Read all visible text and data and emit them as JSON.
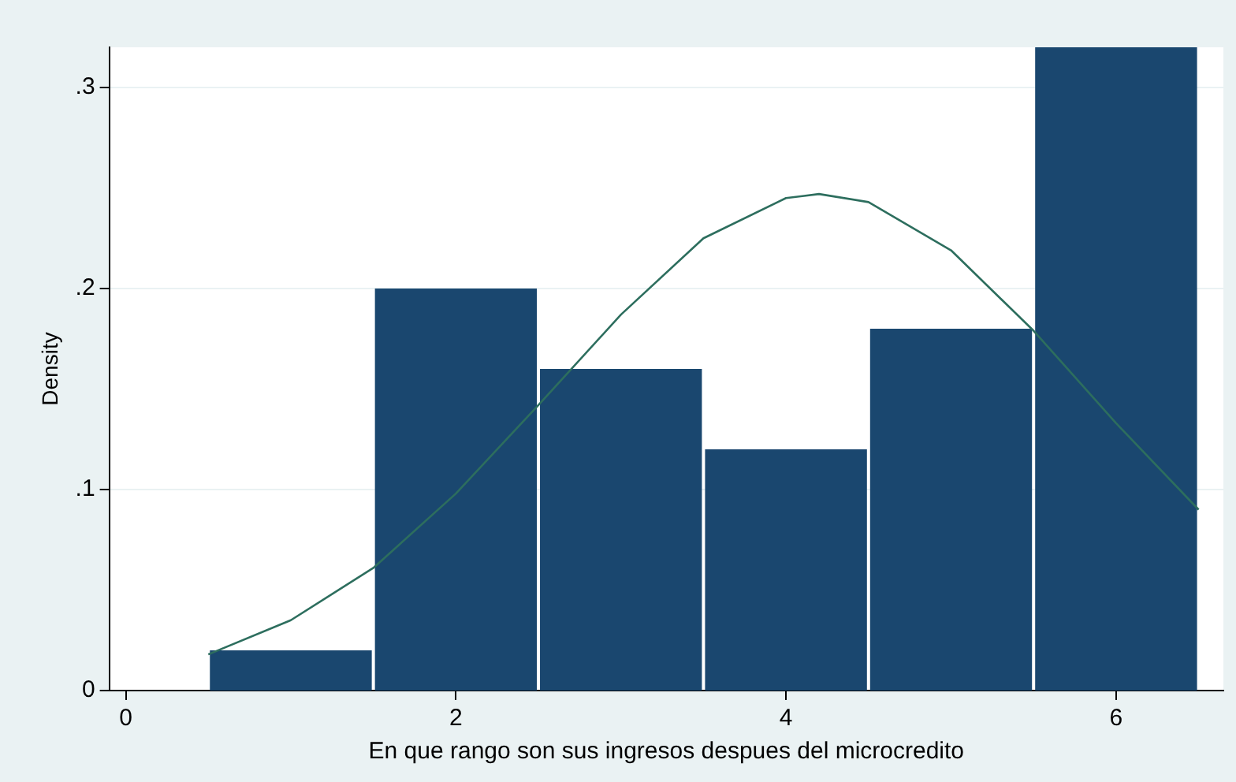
{
  "chart_data": {
    "type": "histogram",
    "xlabel": "En que rango son sus ingresos despues del microcredito",
    "ylabel": "Density",
    "bins": [
      0.5,
      1.5,
      2.5,
      3.5,
      4.5,
      5.5,
      6.5
    ],
    "values": [
      0.02,
      0.2,
      0.16,
      0.12,
      0.18,
      0.32
    ],
    "color": "#1a476f",
    "series": [
      {
        "type": "line",
        "color": "#2d6e5e",
        "x": [
          0.5,
          1,
          1.5,
          2,
          2.5,
          3,
          3.5,
          4,
          4.2,
          4.5,
          5,
          5.5,
          6,
          6.5
        ],
        "values": [
          0.018,
          0.035,
          0.061,
          0.098,
          0.142,
          0.187,
          0.225,
          0.245,
          0.247,
          0.243,
          0.219,
          0.179,
          0.133,
          0.09
        ]
      }
    ],
    "xlim": [
      -0.1,
      6.65
    ],
    "ylim": [
      0,
      0.32
    ],
    "xticks": [
      0,
      2,
      4,
      6
    ],
    "yticks": [
      {
        "value": 0,
        "label": "0"
      },
      {
        "value": 0.1,
        "label": ".1"
      },
      {
        "value": 0.2,
        "label": ".2"
      },
      {
        "value": 0.3,
        "label": ".3"
      }
    ],
    "grid": "y",
    "legend": false,
    "marker": "none"
  }
}
